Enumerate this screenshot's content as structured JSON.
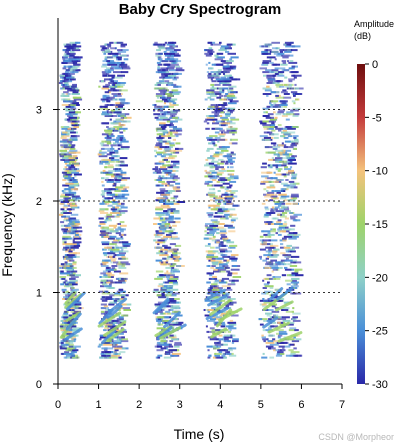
{
  "chart_data": {
    "type": "heatmap",
    "title": "Baby Cry Spectrogram",
    "xlabel": "Time (s)",
    "ylabel": "Frequency (kHz)",
    "xlim": [
      0,
      7
    ],
    "ylim": [
      0,
      4
    ],
    "xticks": [
      "0",
      "1",
      "2",
      "3",
      "4",
      "5",
      "6",
      "7"
    ],
    "yticks": [
      "0",
      "1",
      "2",
      "3"
    ],
    "grid": "dotted horizontal lines at 1, 2, 3 kHz",
    "colorbar": {
      "title": [
        "Amplitude",
        "(dB)"
      ],
      "range": [
        -30,
        0
      ],
      "ticks": [
        "0",
        "-5",
        "-10",
        "-15",
        "-20",
        "-25",
        "-30"
      ],
      "colors": [
        "#2a28a8",
        "#4a8fd8",
        "#8fd1c8",
        "#9ed36a",
        "#f4c27c",
        "#c43c3c",
        "#6e0e0e"
      ]
    },
    "cry_segments": [
      {
        "t_start": 0.05,
        "t_end": 0.4
      },
      {
        "t_start": 1.0,
        "t_end": 1.6
      },
      {
        "t_start": 2.35,
        "t_end": 2.9
      },
      {
        "t_start": 3.6,
        "t_end": 4.3
      },
      {
        "t_start": 4.95,
        "t_end": 5.85
      }
    ]
  },
  "watermark": "CSDN @Morpheor"
}
